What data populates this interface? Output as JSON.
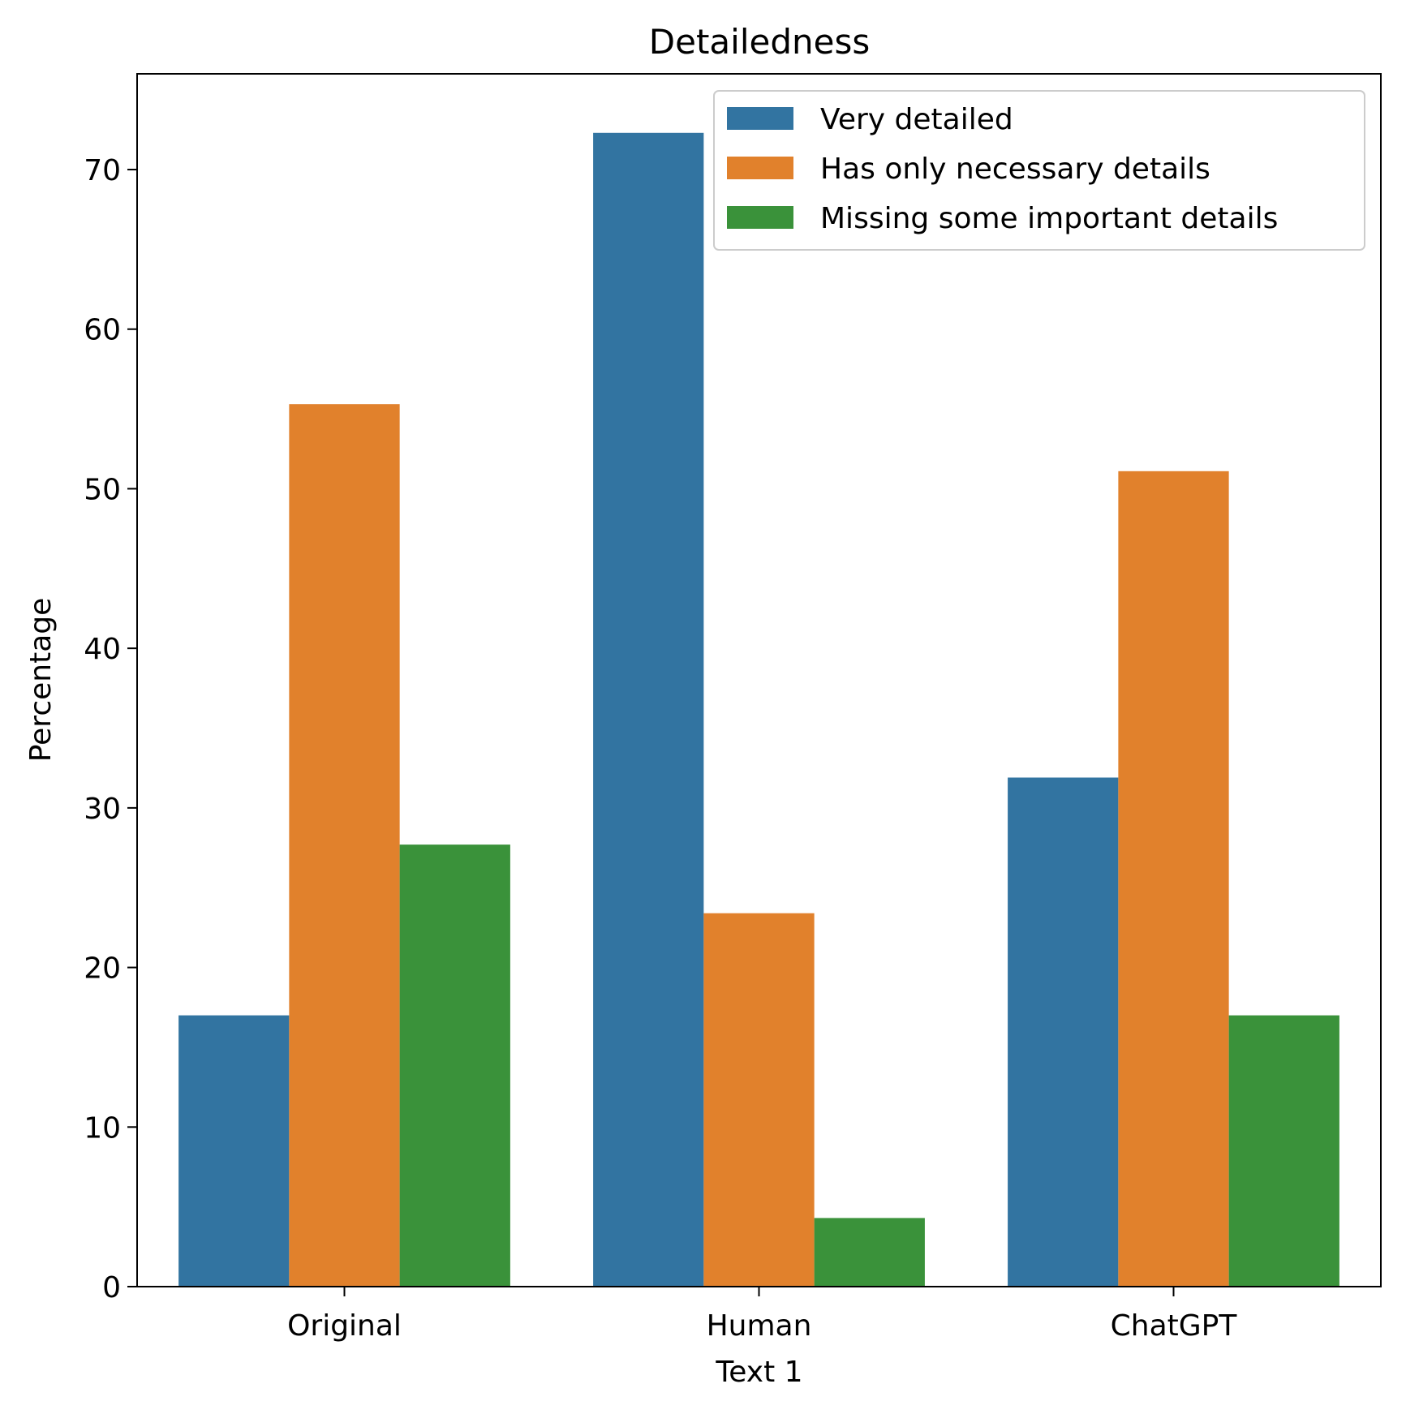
{
  "chart_data": {
    "type": "bar",
    "title": "Detailedness",
    "xlabel": "Text 1",
    "ylabel": "Percentage",
    "categories": [
      "Original",
      "Human",
      "ChatGPT"
    ],
    "series": [
      {
        "name": "Very detailed",
        "color": "#3274a1",
        "values": [
          17.0,
          72.3,
          31.9
        ]
      },
      {
        "name": "Has only necessary details",
        "color": "#e1812c",
        "values": [
          55.3,
          23.4,
          51.1
        ]
      },
      {
        "name": "Missing some important details",
        "color": "#3a923a",
        "values": [
          27.7,
          4.3,
          17.0
        ]
      }
    ],
    "ylim": [
      0,
      76
    ],
    "yticks": [
      "0",
      "10",
      "20",
      "30",
      "40",
      "50",
      "60",
      "70"
    ],
    "grid": false,
    "legend_position": "top-right"
  }
}
